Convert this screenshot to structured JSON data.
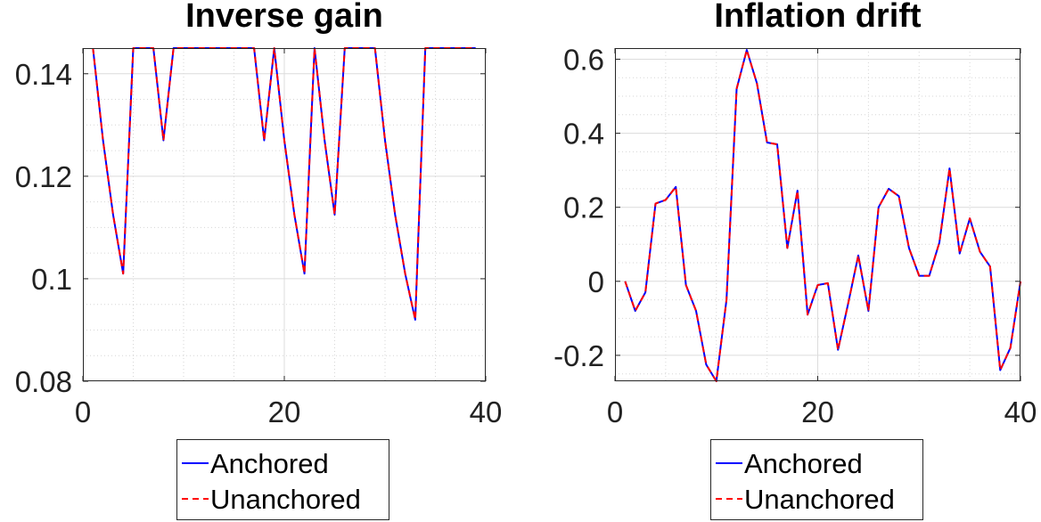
{
  "chart_data": [
    {
      "type": "line",
      "title": "Inverse gain",
      "xlabel": "",
      "ylabel": "",
      "xlim": [
        0,
        40
      ],
      "ylim": [
        0.08,
        0.145
      ],
      "xticks": [
        0,
        20,
        40
      ],
      "xtick_labels": [
        "0",
        "20",
        "40"
      ],
      "yticks": [
        0.08,
        0.1,
        0.12,
        0.14
      ],
      "ytick_labels": [
        "0.08",
        "0.1",
        "0.12",
        "0.14"
      ],
      "grid": true,
      "legend": "below",
      "x": [
        1,
        2,
        3,
        4,
        5,
        6,
        7,
        8,
        9,
        10,
        11,
        12,
        13,
        14,
        15,
        16,
        17,
        18,
        19,
        20,
        21,
        22,
        23,
        24,
        25,
        26,
        27,
        28,
        29,
        30,
        31,
        32,
        33,
        34,
        35,
        36,
        37,
        38,
        39
      ],
      "series": [
        {
          "name": "Anchored",
          "color": "#0000ff",
          "dash": "solid",
          "values": [
            0.145,
            0.127,
            0.1125,
            0.101,
            0.145,
            0.145,
            0.145,
            0.127,
            0.145,
            0.145,
            0.145,
            0.145,
            0.145,
            0.145,
            0.145,
            0.145,
            0.145,
            0.127,
            0.145,
            0.127,
            0.1125,
            0.101,
            0.145,
            0.127,
            0.1125,
            0.145,
            0.145,
            0.145,
            0.145,
            0.127,
            0.1125,
            0.101,
            0.092,
            0.145,
            0.145,
            0.145,
            0.145,
            0.145,
            0.145
          ]
        },
        {
          "name": "Unanchored",
          "color": "#ff0000",
          "dash": "dashed",
          "values": [
            0.145,
            0.127,
            0.1125,
            0.101,
            0.145,
            0.145,
            0.145,
            0.127,
            0.145,
            0.145,
            0.145,
            0.145,
            0.145,
            0.145,
            0.145,
            0.145,
            0.145,
            0.127,
            0.145,
            0.127,
            0.1125,
            0.101,
            0.145,
            0.127,
            0.1125,
            0.145,
            0.145,
            0.145,
            0.145,
            0.127,
            0.1125,
            0.101,
            0.092,
            0.145,
            0.145,
            0.145,
            0.145,
            0.145,
            0.145
          ]
        }
      ]
    },
    {
      "type": "line",
      "title": "Inflation drift",
      "xlabel": "",
      "ylabel": "",
      "xlim": [
        0,
        40
      ],
      "ylim": [
        -0.27,
        0.63
      ],
      "xticks": [
        0,
        20,
        40
      ],
      "xtick_labels": [
        "0",
        "20",
        "40"
      ],
      "yticks": [
        -0.2,
        0,
        0.2,
        0.4,
        0.6
      ],
      "ytick_labels": [
        "-0.2",
        "0",
        "0.2",
        "0.4",
        "0.6"
      ],
      "grid": true,
      "legend": "below",
      "x": [
        1,
        2,
        3,
        4,
        5,
        6,
        7,
        8,
        9,
        10,
        11,
        12,
        13,
        14,
        15,
        16,
        17,
        18,
        19,
        20,
        21,
        22,
        23,
        24,
        25,
        26,
        27,
        28,
        29,
        30,
        31,
        32,
        33,
        34,
        35,
        36,
        37,
        38,
        39,
        40
      ],
      "series": [
        {
          "name": "Anchored",
          "color": "#0000ff",
          "dash": "solid",
          "values": [
            0.0,
            -0.08,
            -0.03,
            0.21,
            0.22,
            0.255,
            -0.01,
            -0.08,
            -0.225,
            -0.27,
            -0.05,
            0.52,
            0.625,
            0.535,
            0.375,
            0.37,
            0.09,
            0.245,
            -0.09,
            -0.01,
            -0.005,
            -0.185,
            -0.06,
            0.07,
            -0.08,
            0.2,
            0.25,
            0.23,
            0.09,
            0.015,
            0.015,
            0.105,
            0.305,
            0.075,
            0.17,
            0.08,
            0.04,
            -0.24,
            -0.18,
            0.0
          ]
        },
        {
          "name": "Unanchored",
          "color": "#ff0000",
          "dash": "dashed",
          "values": [
            0.0,
            -0.08,
            -0.03,
            0.21,
            0.22,
            0.255,
            -0.01,
            -0.08,
            -0.225,
            -0.27,
            -0.05,
            0.52,
            0.625,
            0.535,
            0.375,
            0.37,
            0.09,
            0.245,
            -0.09,
            -0.01,
            -0.005,
            -0.185,
            -0.06,
            0.07,
            -0.08,
            0.2,
            0.25,
            0.23,
            0.09,
            0.015,
            0.015,
            0.105,
            0.305,
            0.075,
            0.17,
            0.08,
            0.04,
            -0.24,
            -0.18,
            0.0
          ]
        }
      ]
    }
  ]
}
